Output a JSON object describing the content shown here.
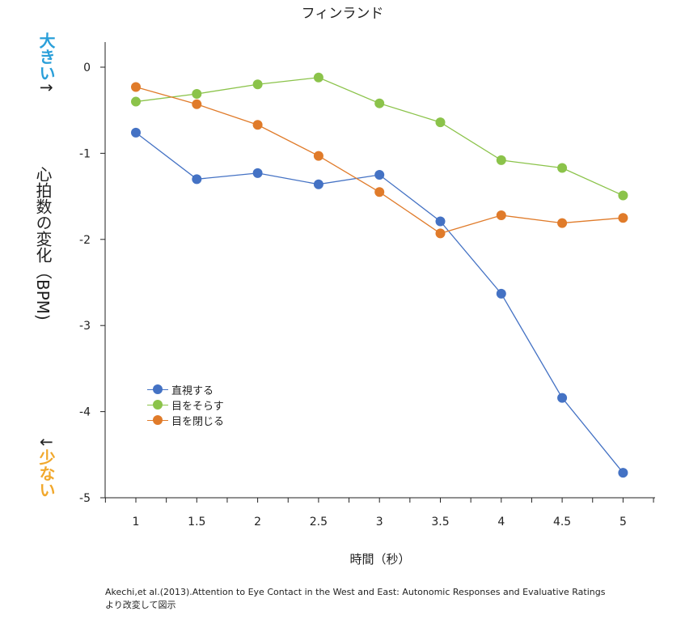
{
  "chart_data": {
    "type": "line",
    "title": "フィンランド",
    "xlabel": "時間（秒）",
    "ylabel": "心拍数の変化（BPM)",
    "x": [
      1,
      1.5,
      2,
      2.5,
      3,
      3.5,
      4,
      4.5,
      5
    ],
    "x_tick_labels": [
      "1",
      "1.5",
      "2",
      "2.5",
      "3",
      "3.5",
      "4",
      "4.5",
      "5"
    ],
    "ylim": [
      -5,
      0
    ],
    "y_ticks": [
      0,
      -1,
      -2,
      -3,
      -4,
      -5
    ],
    "y_tick_labels": [
      "0",
      "-1",
      "-2",
      "-3",
      "-4",
      "-5"
    ],
    "grid": false,
    "legend_position": "lower-left",
    "series": [
      {
        "name": "直視する",
        "color": "#4472c4",
        "values": [
          -0.76,
          -1.3,
          -1.23,
          -1.36,
          -1.25,
          -1.79,
          -2.63,
          -3.84,
          -4.71
        ]
      },
      {
        "name": "目をそらす",
        "color": "#8bc34a",
        "values": [
          -0.4,
          -0.31,
          -0.2,
          -0.12,
          -0.42,
          -0.64,
          -1.08,
          -1.17,
          -1.49
        ]
      },
      {
        "name": "目を閉じる",
        "color": "#e07b2a",
        "values": [
          -0.23,
          -0.43,
          -0.67,
          -1.03,
          -1.45,
          -1.93,
          -1.72,
          -1.81,
          -1.75
        ]
      }
    ],
    "annotations": {
      "top": "大きい",
      "bottom": "少ない",
      "up_arrow": "↑",
      "down_arrow": "↓"
    },
    "source_line1": "Akechi,et al.(2013).Attention to Eye Contact in the West and East: Autonomic Responses and Evaluative Ratings",
    "source_line2": "より改変して図示"
  }
}
